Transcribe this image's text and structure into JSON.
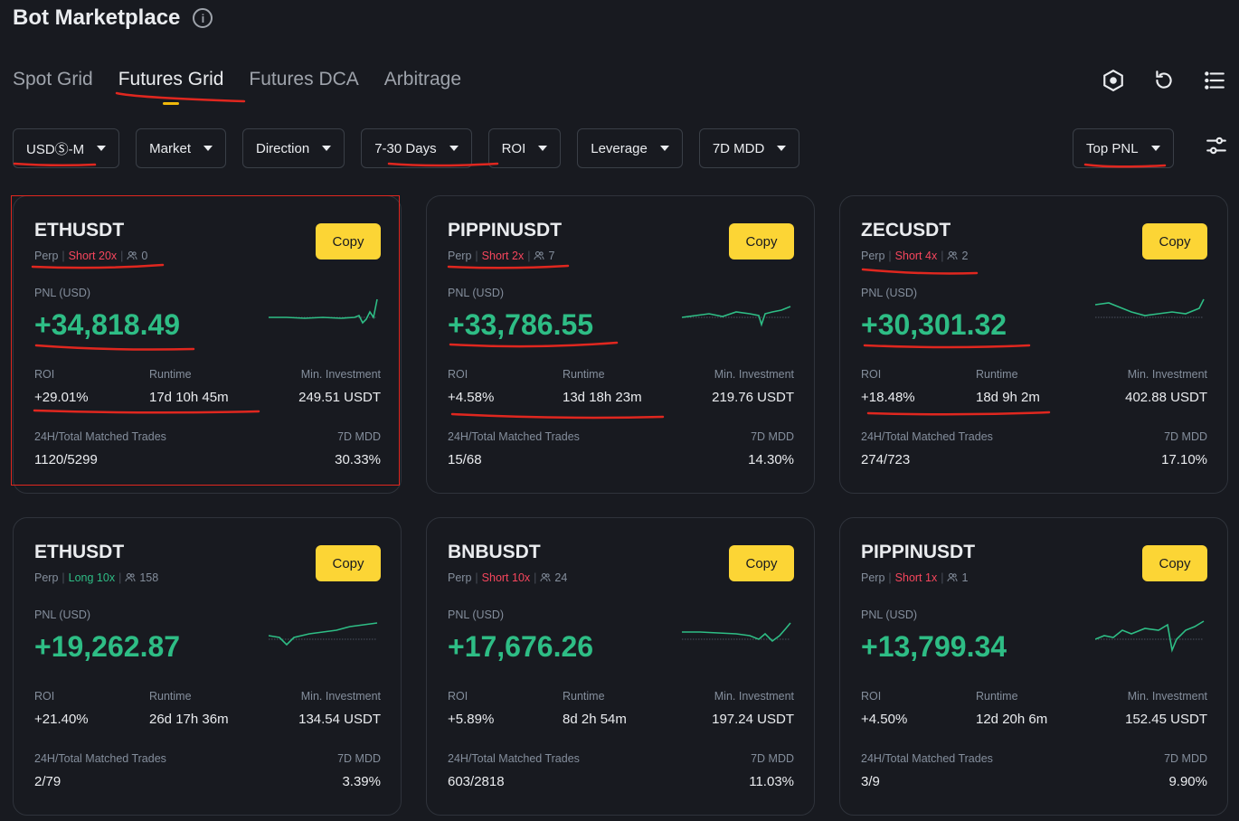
{
  "page": {
    "title": "Bot Marketplace",
    "info_icon": "info-icon"
  },
  "tabs": [
    {
      "label": "Spot Grid"
    },
    {
      "label": "Futures Grid",
      "active": true
    },
    {
      "label": "Futures DCA"
    },
    {
      "label": "Arbitrage"
    }
  ],
  "header_icons": [
    "hexagon-target-icon",
    "refresh-icon",
    "list-icon"
  ],
  "filters": [
    {
      "label": "USDⓈ-M"
    },
    {
      "label": "Market"
    },
    {
      "label": "Direction"
    },
    {
      "label": "7-30 Days"
    },
    {
      "label": "ROI"
    },
    {
      "label": "Leverage"
    },
    {
      "label": "7D MDD"
    }
  ],
  "sort": {
    "label": "Top PNL"
  },
  "labels": {
    "copy": "Copy",
    "perp": "Perp",
    "pnl": "PNL (USD)",
    "roi": "ROI",
    "runtime": "Runtime",
    "min_investment": "Min. Investment",
    "trades": "24H/Total Matched Trades",
    "mdd": "7D MDD"
  },
  "colors": {
    "positive": "#2ebd85",
    "negative": "#f6465d",
    "accent": "#fcd535",
    "annotation": "#e0271f"
  },
  "cards": [
    {
      "symbol": "ETHUSDT",
      "side": "Short 20x",
      "side_type": "short",
      "copiers": "0",
      "pnl": "+34,818.49",
      "roi": "+29.01%",
      "runtime": "17d 10h 45m",
      "min_investment": "249.51 USDT",
      "trades": "1120/5299",
      "mdd": "30.33%"
    },
    {
      "symbol": "PIPPINUSDT",
      "side": "Short 2x",
      "side_type": "short",
      "copiers": "7",
      "pnl": "+33,786.55",
      "roi": "+4.58%",
      "runtime": "13d 18h 23m",
      "min_investment": "219.76 USDT",
      "trades": "15/68",
      "mdd": "14.30%"
    },
    {
      "symbol": "ZECUSDT",
      "side": "Short 4x",
      "side_type": "short",
      "copiers": "2",
      "pnl": "+30,301.32",
      "roi": "+18.48%",
      "runtime": "18d 9h 2m",
      "min_investment": "402.88 USDT",
      "trades": "274/723",
      "mdd": "17.10%"
    },
    {
      "symbol": "ETHUSDT",
      "side": "Long 10x",
      "side_type": "long",
      "copiers": "158",
      "pnl": "+19,262.87",
      "roi": "+21.40%",
      "runtime": "26d 17h 36m",
      "min_investment": "134.54 USDT",
      "trades": "2/79",
      "mdd": "3.39%"
    },
    {
      "symbol": "BNBUSDT",
      "side": "Short 10x",
      "side_type": "short",
      "copiers": "24",
      "pnl": "+17,676.26",
      "roi": "+5.89%",
      "runtime": "8d 2h 54m",
      "min_investment": "197.24 USDT",
      "trades": "603/2818",
      "mdd": "11.03%"
    },
    {
      "symbol": "PIPPINUSDT",
      "side": "Short 1x",
      "side_type": "short",
      "copiers": "1",
      "pnl": "+13,799.34",
      "roi": "+4.50%",
      "runtime": "12d 20h 6m",
      "min_investment": "152.45 USDT",
      "trades": "3/9",
      "mdd": "9.90%"
    }
  ]
}
